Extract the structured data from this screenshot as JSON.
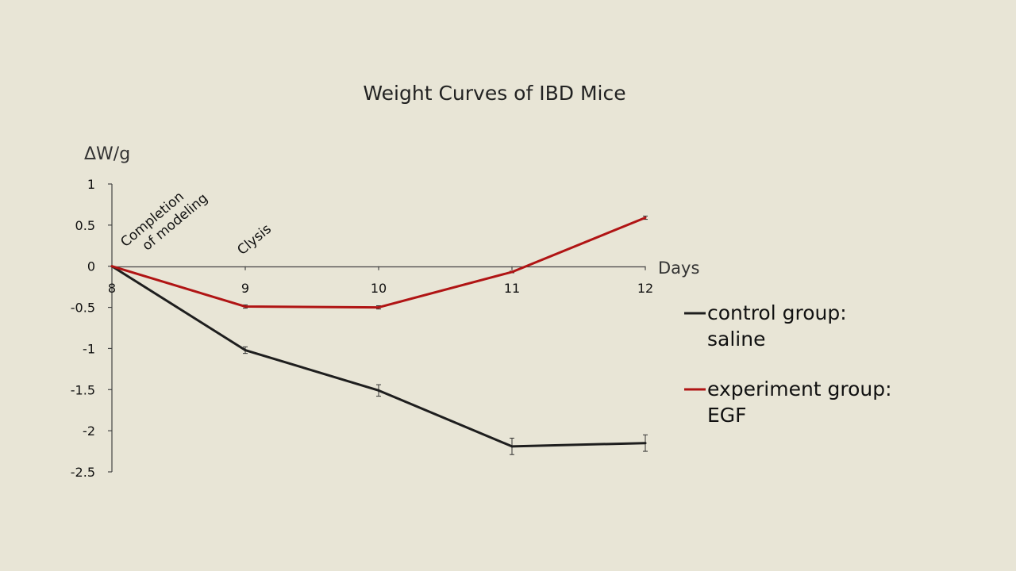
{
  "chart_data": {
    "type": "line",
    "title": "Weight Curves of IBD Mice",
    "ylabel": "ΔW/g",
    "xlabel": "Days",
    "x": [
      8,
      9,
      10,
      11,
      12
    ],
    "xlim": [
      8,
      12
    ],
    "ylim": [
      -2.5,
      1
    ],
    "yticks": [
      1,
      0.5,
      0,
      -0.5,
      -1,
      -1.5,
      -2,
      -2.5
    ],
    "ytick_labels": [
      "1",
      "0.5",
      "0",
      "-0.5",
      "-1",
      "-1.5",
      "-2",
      "-2.5"
    ],
    "xtick_labels": [
      "8",
      "9",
      "10",
      "11",
      "12"
    ],
    "grid": false,
    "legend_position": "right",
    "series": [
      {
        "name": "control group: saline",
        "name_lines": [
          "control group:",
          "saline"
        ],
        "color": "#1e1e1e",
        "values": [
          0,
          -1.02,
          -1.51,
          -2.19,
          -2.15
        ],
        "errors": [
          0,
          0.04,
          0.07,
          0.1,
          0.1
        ]
      },
      {
        "name": "experiment group: EGF",
        "name_lines": [
          "experiment group:",
          "EGF"
        ],
        "color": "#b01414",
        "values": [
          0,
          -0.49,
          -0.5,
          -0.07,
          0.59
        ],
        "errors": [
          0,
          0.02,
          0.02,
          0.01,
          0.02
        ]
      }
    ],
    "annotations": [
      {
        "lines": [
          "Completion",
          "of modeling"
        ],
        "x": 8
      },
      {
        "lines": [
          "Clysis"
        ],
        "x": 9
      }
    ]
  }
}
